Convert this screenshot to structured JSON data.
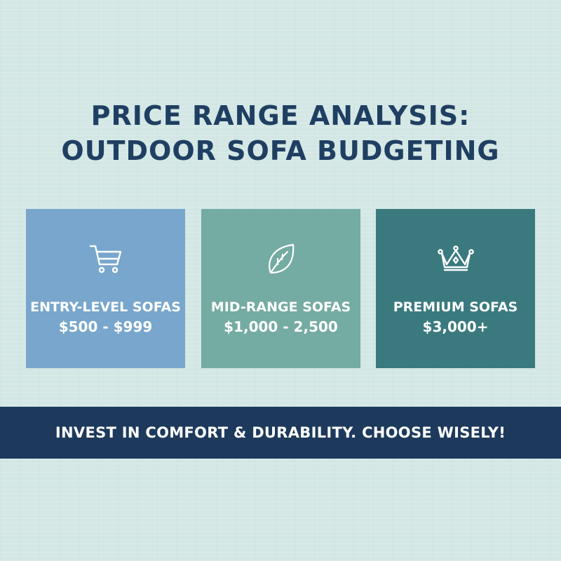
{
  "title": {
    "line1": "PRICE RANGE ANALYSIS:",
    "line2": "OUTDOOR SOFA BUDGETING"
  },
  "colors": {
    "background": "#d3e7e5",
    "title_text": "#1f3f62",
    "banner": "#1d3a5c"
  },
  "cards": [
    {
      "icon": "shopping-cart-icon",
      "label": "ENTRY-LEVEL SOFAS",
      "price": "$500 - $999",
      "color": "#78a6cc"
    },
    {
      "icon": "leaf-icon",
      "label": "MID-RANGE SOFAS",
      "price": "$1,000 - 2,500",
      "color": "#74aba2"
    },
    {
      "icon": "crown-icon",
      "label": "PREMIUM SOFAS",
      "price": "$3,000+",
      "color": "#3a7a7f"
    }
  ],
  "banner": {
    "text": "INVEST IN COMFORT & DURABILITY. CHOOSE WISELY!"
  }
}
